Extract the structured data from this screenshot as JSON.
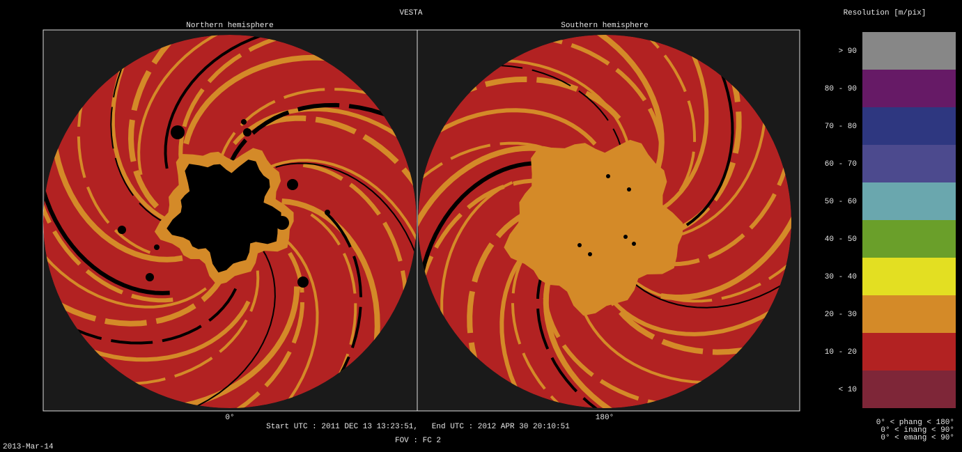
{
  "header": {
    "title": "VESTA"
  },
  "panels": [
    {
      "title": "Northern hemisphere",
      "bottom_label": "0°"
    },
    {
      "title": "Southern hemisphere",
      "bottom_label": "180°"
    }
  ],
  "footer": {
    "time_range": "Start UTC : 2011 DEC 13 13:23:51,   End UTC : 2012 APR 30 20:10:51",
    "fov": "FOV : FC 2",
    "date": "2013-Mar-14"
  },
  "legend": {
    "title": "Resolution [m/pix]",
    "items": [
      {
        "label": "> 90",
        "color": "#878787"
      },
      {
        "label": "80 - 90",
        "color": "#661a66"
      },
      {
        "label": "70 - 80",
        "color": "#2e3780"
      },
      {
        "label": "60 - 70",
        "color": "#4c4a8e"
      },
      {
        "label": "50 - 60",
        "color": "#6aa7ae"
      },
      {
        "label": "40 - 50",
        "color": "#6a9f2a"
      },
      {
        "label": "30 - 40",
        "color": "#e3df22"
      },
      {
        "label": "20 - 30",
        "color": "#d48a28"
      },
      {
        "label": "10 - 20",
        "color": "#b22222"
      },
      {
        "label": "< 10",
        "color": "#7e2638"
      }
    ]
  },
  "constraints": [
    "0° < phang < 180°",
    "0° < inang <  90°",
    "0° < emang <  90°"
  ]
}
